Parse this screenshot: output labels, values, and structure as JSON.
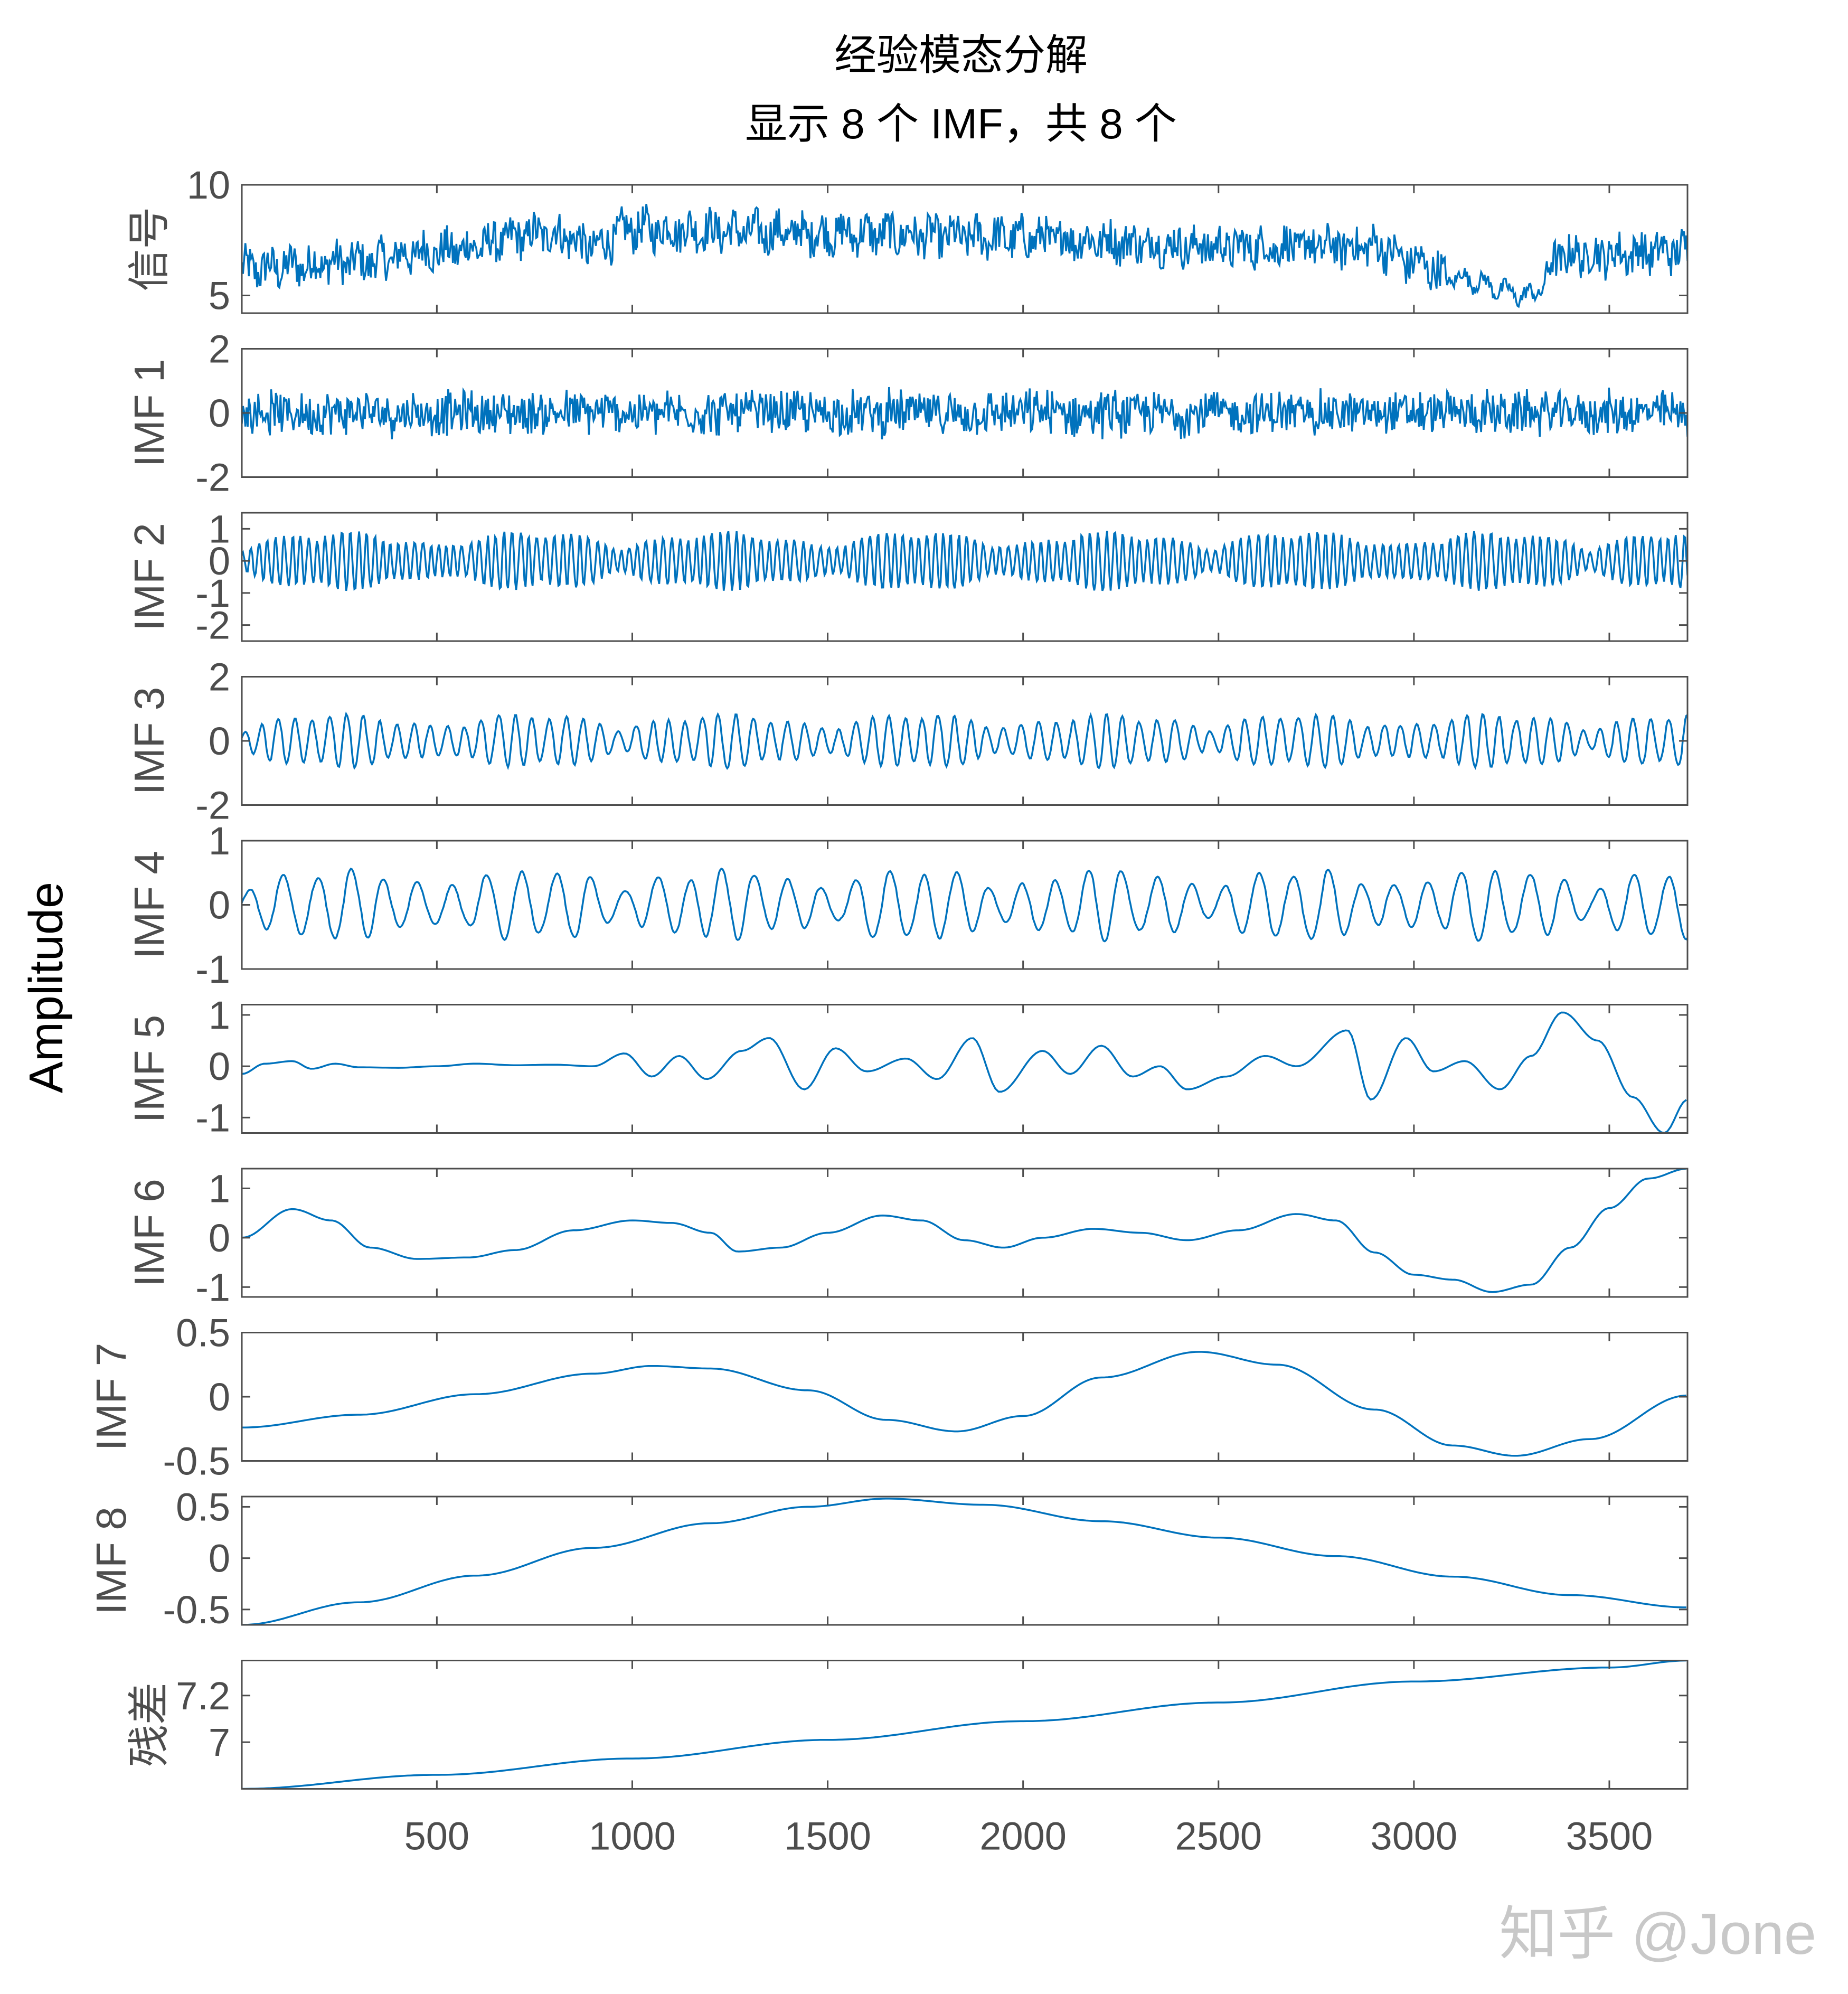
{
  "title": "经验模态分解",
  "subtitle": "显示 8 个 IMF，共 8 个",
  "watermark": "知乎 @Jone",
  "colors": {
    "line": "#0072BD",
    "axis": "#4d4d4d",
    "text": "#4d4d4d",
    "title": "#000000"
  },
  "chart_data": {
    "type": "line",
    "title": "经验模态分解",
    "subtitle": "显示 8 个 IMF，共 8 个",
    "ylabel": "Amplitude",
    "xlim": [
      1,
      3700
    ],
    "x_ticks": [
      500,
      1000,
      1500,
      2000,
      2500,
      3000,
      3500
    ],
    "grid": false,
    "series": [
      {
        "name": "信号",
        "ylim": [
          4.2,
          10
        ],
        "yticks": [
          5,
          10
        ],
        "ytick_labels": [
          "5",
          "10"
        ],
        "kind": "signal",
        "trend": [
          [
            0,
            6.2
          ],
          [
            300,
            6.5
          ],
          [
            500,
            7.0
          ],
          [
            800,
            7.8
          ],
          [
            900,
            7.2
          ],
          [
            1000,
            8.0
          ],
          [
            1500,
            7.8
          ],
          [
            2000,
            7.6
          ],
          [
            2500,
            7.2
          ],
          [
            2900,
            7.2
          ],
          [
            3000,
            6.5
          ],
          [
            3100,
            5.8
          ],
          [
            3300,
            5.0
          ],
          [
            3380,
            6.8
          ],
          [
            3700,
            7.0
          ]
        ]
      },
      {
        "name": "IMF 1",
        "ylim": [
          -2,
          2
        ],
        "yticks": [
          -2,
          0,
          2
        ],
        "ytick_labels": [
          "-2",
          "0",
          "2"
        ],
        "kind": "noise",
        "amp": 0.6
      },
      {
        "name": "IMF 2",
        "ylim": [
          -2.5,
          1.5
        ],
        "yticks": [
          -2,
          -1,
          0,
          1
        ],
        "ytick_labels": [
          "-2",
          "-1",
          "0",
          "1"
        ],
        "kind": "osc",
        "amp": 0.5,
        "period": 22
      },
      {
        "name": "IMF 3",
        "ylim": [
          -2,
          2
        ],
        "yticks": [
          -2,
          0,
          2
        ],
        "ytick_labels": [
          "-2",
          "0",
          "2"
        ],
        "kind": "osc",
        "amp": 0.45,
        "period": 45
      },
      {
        "name": "IMF 4",
        "ylim": [
          -1,
          1
        ],
        "yticks": [
          -1,
          0,
          1
        ],
        "ytick_labels": [
          "-1",
          "0",
          "1"
        ],
        "kind": "osc",
        "amp": 0.3,
        "period": 90
      },
      {
        "name": "IMF 5",
        "ylim": [
          -1.3,
          1.2
        ],
        "yticks": [
          -1,
          0,
          1
        ],
        "ytick_labels": [
          "-1",
          "0",
          "1"
        ],
        "kind": "points",
        "points": [
          [
            1,
            -0.15
          ],
          [
            60,
            0.05
          ],
          [
            130,
            0.1
          ],
          [
            180,
            -0.05
          ],
          [
            240,
            0.05
          ],
          [
            300,
            -0.02
          ],
          [
            400,
            -0.03
          ],
          [
            500,
            0.0
          ],
          [
            600,
            0.05
          ],
          [
            700,
            0.02
          ],
          [
            800,
            0.03
          ],
          [
            900,
            0.0
          ],
          [
            980,
            0.25
          ],
          [
            1050,
            -0.2
          ],
          [
            1120,
            0.2
          ],
          [
            1190,
            -0.25
          ],
          [
            1280,
            0.3
          ],
          [
            1350,
            0.55
          ],
          [
            1440,
            -0.45
          ],
          [
            1520,
            0.35
          ],
          [
            1600,
            -0.1
          ],
          [
            1700,
            0.15
          ],
          [
            1780,
            -0.25
          ],
          [
            1870,
            0.55
          ],
          [
            1940,
            -0.5
          ],
          [
            2050,
            0.3
          ],
          [
            2120,
            -0.15
          ],
          [
            2200,
            0.4
          ],
          [
            2280,
            -0.2
          ],
          [
            2350,
            0.0
          ],
          [
            2420,
            -0.45
          ],
          [
            2520,
            -0.2
          ],
          [
            2620,
            0.2
          ],
          [
            2700,
            0.0
          ],
          [
            2830,
            0.7
          ],
          [
            2890,
            -0.65
          ],
          [
            2980,
            0.55
          ],
          [
            3050,
            -0.1
          ],
          [
            3130,
            0.1
          ],
          [
            3220,
            -0.45
          ],
          [
            3300,
            0.2
          ],
          [
            3380,
            1.05
          ],
          [
            3470,
            0.5
          ],
          [
            3560,
            -0.6
          ],
          [
            3640,
            -1.3
          ],
          [
            3700,
            -0.65
          ]
        ]
      },
      {
        "name": "IMF 6",
        "ylim": [
          -1.2,
          1.4
        ],
        "yticks": [
          -1,
          0,
          1
        ],
        "ytick_labels": [
          "-1",
          "0",
          "1"
        ],
        "kind": "points",
        "points": [
          [
            1,
            0.0
          ],
          [
            130,
            0.58
          ],
          [
            230,
            0.35
          ],
          [
            330,
            -0.2
          ],
          [
            450,
            -0.43
          ],
          [
            580,
            -0.4
          ],
          [
            700,
            -0.25
          ],
          [
            850,
            0.15
          ],
          [
            1000,
            0.35
          ],
          [
            1100,
            0.3
          ],
          [
            1200,
            0.1
          ],
          [
            1270,
            -0.28
          ],
          [
            1380,
            -0.2
          ],
          [
            1500,
            0.1
          ],
          [
            1640,
            0.45
          ],
          [
            1740,
            0.35
          ],
          [
            1850,
            -0.05
          ],
          [
            1950,
            -0.2
          ],
          [
            2050,
            0.0
          ],
          [
            2180,
            0.18
          ],
          [
            2300,
            0.1
          ],
          [
            2420,
            -0.05
          ],
          [
            2550,
            0.15
          ],
          [
            2700,
            0.48
          ],
          [
            2800,
            0.35
          ],
          [
            2900,
            -0.3
          ],
          [
            3000,
            -0.75
          ],
          [
            3100,
            -0.85
          ],
          [
            3200,
            -1.1
          ],
          [
            3300,
            -0.95
          ],
          [
            3400,
            -0.2
          ],
          [
            3500,
            0.6
          ],
          [
            3600,
            1.2
          ],
          [
            3700,
            1.4
          ]
        ]
      },
      {
        "name": "IMF 7",
        "ylim": [
          -0.5,
          0.5
        ],
        "yticks": [
          -0.5,
          0,
          0.5
        ],
        "ytick_labels": [
          "-0.5",
          "0",
          "0.5"
        ],
        "kind": "points",
        "points": [
          [
            1,
            -0.24
          ],
          [
            300,
            -0.14
          ],
          [
            600,
            0.02
          ],
          [
            900,
            0.18
          ],
          [
            1050,
            0.24
          ],
          [
            1200,
            0.22
          ],
          [
            1450,
            0.05
          ],
          [
            1650,
            -0.18
          ],
          [
            1830,
            -0.27
          ],
          [
            2000,
            -0.15
          ],
          [
            2200,
            0.15
          ],
          [
            2450,
            0.35
          ],
          [
            2650,
            0.25
          ],
          [
            2900,
            -0.1
          ],
          [
            3100,
            -0.38
          ],
          [
            3260,
            -0.46
          ],
          [
            3450,
            -0.33
          ],
          [
            3700,
            0.01
          ]
        ]
      },
      {
        "name": "IMF 8",
        "ylim": [
          -0.65,
          0.6
        ],
        "yticks": [
          -0.5,
          0,
          0.5
        ],
        "ytick_labels": [
          "-0.5",
          "0",
          "0.5"
        ],
        "kind": "points",
        "points": [
          [
            1,
            -0.65
          ],
          [
            300,
            -0.43
          ],
          [
            600,
            -0.17
          ],
          [
            900,
            0.1
          ],
          [
            1200,
            0.34
          ],
          [
            1450,
            0.5
          ],
          [
            1650,
            0.58
          ],
          [
            1900,
            0.52
          ],
          [
            2200,
            0.36
          ],
          [
            2500,
            0.2
          ],
          [
            2800,
            0.02
          ],
          [
            3100,
            -0.18
          ],
          [
            3400,
            -0.36
          ],
          [
            3700,
            -0.48
          ]
        ]
      },
      {
        "name": "残差",
        "ylim": [
          6.8,
          7.35
        ],
        "yticks": [
          7.0,
          7.2
        ],
        "ytick_labels": [
          "7",
          "7.2"
        ],
        "kind": "points",
        "points": [
          [
            1,
            6.8
          ],
          [
            500,
            6.86
          ],
          [
            1000,
            6.93
          ],
          [
            1500,
            7.01
          ],
          [
            2000,
            7.09
          ],
          [
            2500,
            7.17
          ],
          [
            3000,
            7.26
          ],
          [
            3500,
            7.32
          ],
          [
            3700,
            7.35
          ]
        ]
      }
    ]
  }
}
